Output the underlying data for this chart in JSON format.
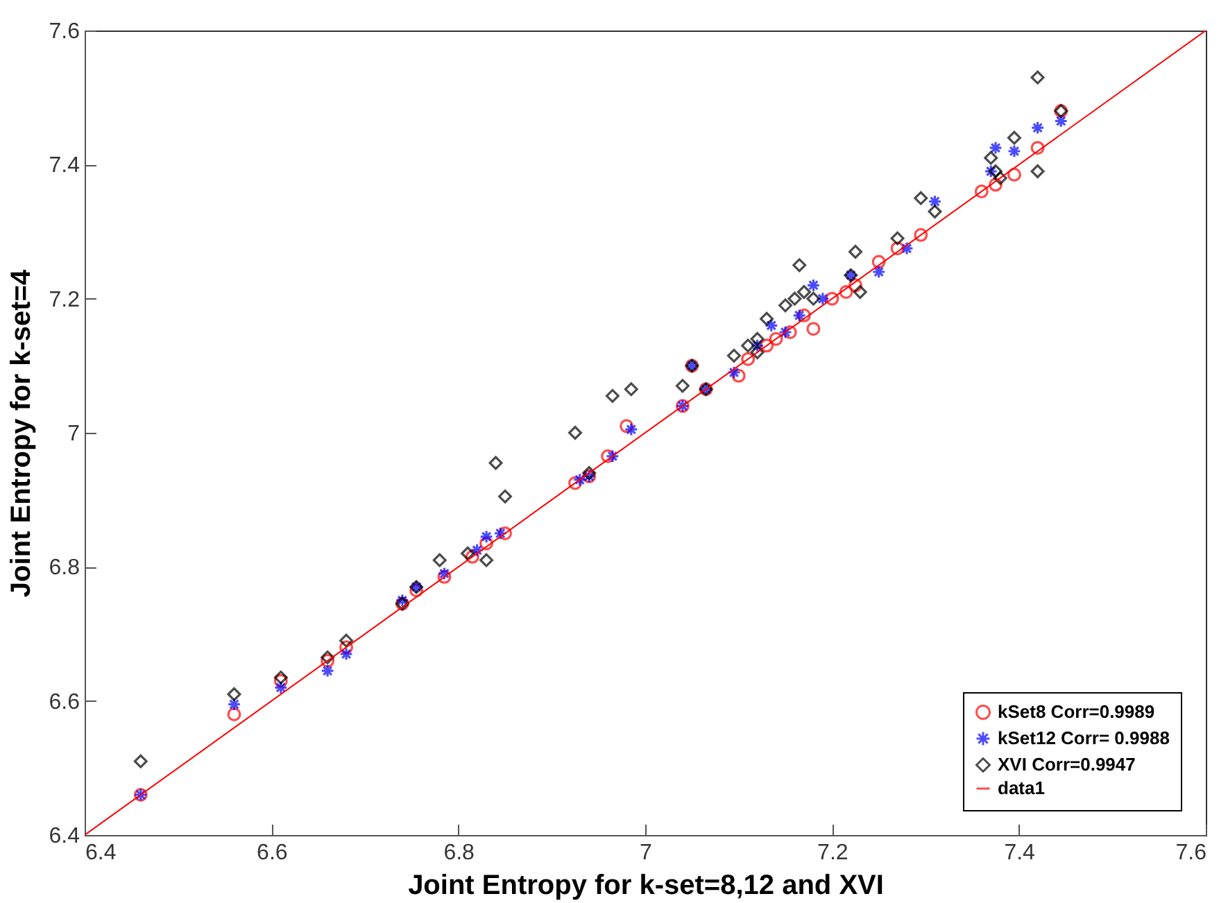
{
  "chart_data": {
    "type": "scatter",
    "xlabel": "Joint Entropy for k-set=8,12 and XVI",
    "ylabel": "Joint Entropy for k-set=4",
    "xlim": [
      6.4,
      7.6
    ],
    "ylim": [
      6.4,
      7.6
    ],
    "xticks": [
      6.4,
      6.6,
      6.8,
      7,
      7.2,
      7.4,
      7.6
    ],
    "yticks": [
      6.4,
      6.6,
      6.8,
      7,
      7.2,
      7.4,
      7.6
    ],
    "grid": false,
    "legend": "bottom right",
    "series": [
      {
        "name": "kSet8 Corr=0.9989",
        "color": "#ff0000",
        "marker": "circle",
        "x": [
          6.46,
          6.56,
          6.61,
          6.66,
          6.68,
          6.74,
          6.755,
          6.785,
          6.815,
          6.83,
          6.85,
          6.925,
          6.94,
          6.96,
          6.98,
          7.04,
          7.05,
          7.065,
          7.1,
          7.11,
          7.13,
          7.14,
          7.155,
          7.17,
          7.18,
          7.2,
          7.215,
          7.225,
          7.25,
          7.27,
          7.295,
          7.36,
          7.375,
          7.395,
          7.42,
          7.445
        ],
        "values": [
          6.46,
          6.58,
          6.63,
          6.66,
          6.68,
          6.745,
          6.765,
          6.785,
          6.815,
          6.835,
          6.85,
          6.925,
          6.935,
          6.965,
          7.01,
          7.04,
          7.1,
          7.065,
          7.085,
          7.11,
          7.13,
          7.14,
          7.15,
          7.175,
          7.155,
          7.2,
          7.21,
          7.22,
          7.255,
          7.275,
          7.295,
          7.36,
          7.37,
          7.385,
          7.425,
          7.48
        ]
      },
      {
        "name": "kSet12 Corr= 0.9988",
        "color": "#0000ff",
        "marker": "cross",
        "x": [
          6.46,
          6.56,
          6.61,
          6.66,
          6.68,
          6.74,
          6.755,
          6.785,
          6.82,
          6.83,
          6.845,
          6.93,
          6.94,
          6.965,
          6.985,
          7.04,
          7.05,
          7.065,
          7.095,
          7.12,
          7.135,
          7.15,
          7.165,
          7.18,
          7.19,
          7.22,
          7.25,
          7.28,
          7.31,
          7.37,
          7.375,
          7.395,
          7.42,
          7.445
        ],
        "values": [
          6.46,
          6.595,
          6.62,
          6.645,
          6.67,
          6.75,
          6.77,
          6.79,
          6.825,
          6.845,
          6.85,
          6.93,
          6.935,
          6.965,
          7.005,
          7.04,
          7.1,
          7.065,
          7.09,
          7.13,
          7.16,
          7.15,
          7.175,
          7.22,
          7.2,
          7.235,
          7.24,
          7.275,
          7.345,
          7.39,
          7.425,
          7.42,
          7.455,
          7.465
        ]
      },
      {
        "name": "XVI Corr=0.9947",
        "color": "#000000",
        "marker": "diamond",
        "x": [
          6.46,
          6.56,
          6.61,
          6.66,
          6.68,
          6.74,
          6.755,
          6.78,
          6.81,
          6.83,
          6.84,
          6.85,
          6.925,
          6.94,
          6.965,
          6.985,
          7.04,
          7.05,
          7.065,
          7.095,
          7.11,
          7.12,
          7.12,
          7.13,
          7.15,
          7.16,
          7.165,
          7.17,
          7.18,
          7.22,
          7.225,
          7.23,
          7.27,
          7.295,
          7.31,
          7.37,
          7.375,
          7.38,
          7.395,
          7.42,
          7.42,
          7.445
        ],
        "values": [
          6.51,
          6.61,
          6.635,
          6.665,
          6.69,
          6.745,
          6.77,
          6.81,
          6.82,
          6.81,
          6.955,
          6.905,
          7.0,
          6.94,
          7.055,
          7.065,
          7.07,
          7.1,
          7.065,
          7.115,
          7.13,
          7.12,
          7.14,
          7.17,
          7.19,
          7.2,
          7.25,
          7.21,
          7.2,
          7.235,
          7.27,
          7.21,
          7.29,
          7.35,
          7.33,
          7.41,
          7.39,
          7.38,
          7.44,
          7.39,
          7.53,
          7.48
        ]
      },
      {
        "name": "data1",
        "color": "#ff0000",
        "type": "line",
        "marker": "none",
        "x": [
          6.4,
          7.6
        ],
        "values": [
          6.4,
          7.6
        ]
      }
    ]
  }
}
